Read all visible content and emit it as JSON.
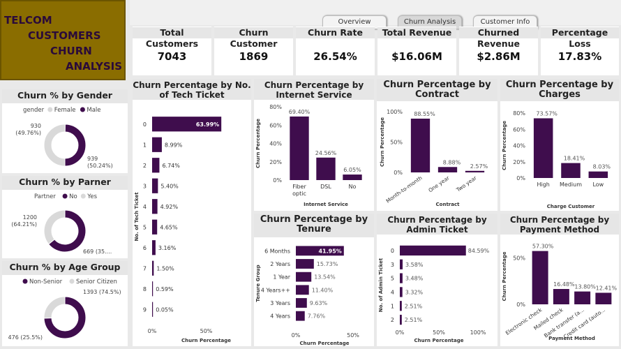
{
  "header": {
    "title_lines": [
      "TELCOM",
      "CUSTOMERS",
      "CHURN",
      "ANALYSIS"
    ],
    "tabs": [
      {
        "label": "Overview",
        "active": false
      },
      {
        "label": "Churn Analysis",
        "active": true
      },
      {
        "label": "Customer Info",
        "active": false
      }
    ]
  },
  "kpis": [
    {
      "label": "Total Customers",
      "value": "7043"
    },
    {
      "label": "Churn Customer",
      "value": "1869"
    },
    {
      "label": "Churn Rate",
      "value": "26.54%"
    },
    {
      "label": "Total Revenue",
      "value": "$16.06M"
    },
    {
      "label": "Churned Revenue",
      "value": "$2.86M"
    },
    {
      "label": "Percentage Loss",
      "value": "17.83%"
    }
  ],
  "colors": {
    "accent": "#3f0d4d",
    "secondary": "#d9d9d9",
    "brand": "#8a6d00"
  },
  "chart_data": [
    {
      "id": "gender",
      "type": "pie",
      "title": "Churn % by Gender",
      "legend_title": "gender",
      "slices": [
        {
          "name": "Female",
          "value": 939,
          "label": "939\n(50.24%)",
          "color": "#d9d9d9"
        },
        {
          "name": "Male",
          "value": 930,
          "label": "930\n(49.76%)",
          "color": "#3f0d4d"
        }
      ]
    },
    {
      "id": "partner",
      "type": "pie",
      "title": "Churn % by Parner",
      "legend_title": "Partner",
      "slices": [
        {
          "name": "No",
          "value": 1200,
          "label": "1200\n(64.21%)",
          "color": "#3f0d4d"
        },
        {
          "name": "Yes",
          "value": 669,
          "label": "669 (35....",
          "color": "#d9d9d9"
        }
      ]
    },
    {
      "id": "age",
      "type": "pie",
      "title": "Churn % by Age Group",
      "legend_title": "",
      "slices": [
        {
          "name": "Non-Senior",
          "value": 1393,
          "label": "1393 (74.5%)",
          "color": "#3f0d4d"
        },
        {
          "name": "Senior Citizen",
          "value": 476,
          "label": "476 (25.5%)",
          "color": "#d9d9d9"
        }
      ]
    },
    {
      "id": "tech",
      "type": "bar",
      "orientation": "horizontal",
      "title": "Churn Percentage by No. of Tech Ticket",
      "categories": [
        "0",
        "1",
        "2",
        "3",
        "4",
        "5",
        "6",
        "7",
        "8",
        "9"
      ],
      "values": [
        63.99,
        8.99,
        6.74,
        5.4,
        4.92,
        4.65,
        3.16,
        1.5,
        0.59,
        0.05
      ],
      "labels": [
        "63.99%",
        "8.99%",
        "6.74%",
        "5.40%",
        "4.92%",
        "4.65%",
        "3.16%",
        "1.50%",
        "0.59%",
        "0.05%"
      ],
      "xlabel": "Churn Percentage",
      "ylabel": "No. of Tech Ticket",
      "ticks": [
        "0%",
        "50%"
      ],
      "xlim": [
        0,
        100
      ]
    },
    {
      "id": "internet",
      "type": "bar",
      "orientation": "vertical",
      "title": "Churn Percentage by Internet Service",
      "categories": [
        "Fiber optic",
        "DSL",
        "No"
      ],
      "values": [
        69.4,
        24.56,
        6.05
      ],
      "labels": [
        "69.40%",
        "24.56%",
        "6.05%"
      ],
      "xlabel": "Internet Service",
      "ylabel": "Churn Percentage",
      "ticks": [
        "0%",
        "20%",
        "40%",
        "60%",
        "80%"
      ],
      "ylim": [
        0,
        80
      ]
    },
    {
      "id": "contract",
      "type": "bar",
      "orientation": "vertical",
      "title": "Churn Percentage by Contract",
      "categories": [
        "Month-to-month",
        "One year",
        "Two year"
      ],
      "values": [
        88.55,
        8.88,
        2.57
      ],
      "labels": [
        "88.55%",
        "8.88%",
        "2.57%"
      ],
      "xlabel": "Contract",
      "ylabel": "Churn Percentage",
      "ticks": [
        "0%",
        "50%",
        "100%"
      ],
      "ylim": [
        0,
        100
      ]
    },
    {
      "id": "charges",
      "type": "bar",
      "orientation": "vertical",
      "title": "Churn Percentage by Charges",
      "categories": [
        "High",
        "Medium",
        "Low"
      ],
      "values": [
        73.57,
        18.41,
        8.03
      ],
      "labels": [
        "73.57%",
        "18.41%",
        "8.03%"
      ],
      "xlabel": "Charge Customer",
      "ylabel": "Churn Percentage",
      "ticks": [
        "0%",
        "20%",
        "40%",
        "60%",
        "80%"
      ],
      "ylim": [
        0,
        80
      ]
    },
    {
      "id": "tenure",
      "type": "bar",
      "orientation": "horizontal",
      "title": "Churn Percentage by Tenure",
      "categories": [
        "6 Months",
        "2 Years",
        "1 Year",
        "4 Years++",
        "3 Years",
        "4 Years"
      ],
      "values": [
        41.95,
        15.73,
        13.54,
        11.4,
        9.63,
        7.76
      ],
      "labels": [
        "41.95%",
        "15.73%",
        "13.54%",
        "11.40%",
        "9.63%",
        "7.76%"
      ],
      "xlabel": "Churn Percentage",
      "ylabel": "Tenure Group",
      "ticks": [
        "0%",
        "50%"
      ],
      "xlim": [
        0,
        50
      ]
    },
    {
      "id": "admin",
      "type": "bar",
      "orientation": "horizontal",
      "title": "Churn Percentage by Admin Ticket",
      "categories": [
        "0",
        "3",
        "5",
        "4",
        "1",
        "2"
      ],
      "values": [
        84.59,
        3.58,
        3.48,
        3.32,
        2.51,
        2.51
      ],
      "labels": [
        "84.59%",
        "3.58%",
        "3.48%",
        "3.32%",
        "2.51%",
        "2.51%"
      ],
      "xlabel": "Churn Percentage",
      "ylabel": "No. of Admin Ticket",
      "ticks": [
        "0%",
        "50%",
        "100%"
      ],
      "xlim": [
        0,
        100
      ]
    },
    {
      "id": "payment",
      "type": "bar",
      "orientation": "vertical",
      "title": "Churn Percentage by Payment Method",
      "categories": [
        "Electronic check",
        "Mailed check",
        "Bank transfer (a...",
        "Credit card (auto..."
      ],
      "values": [
        57.3,
        16.48,
        13.8,
        12.41
      ],
      "labels": [
        "57.30%",
        "16.48%",
        "13.80%",
        "12.41%"
      ],
      "xlabel": "Payment Method",
      "ylabel": "Churn Percentage",
      "ticks": [
        "0%",
        "50%"
      ],
      "ylim": [
        0,
        60
      ]
    }
  ]
}
